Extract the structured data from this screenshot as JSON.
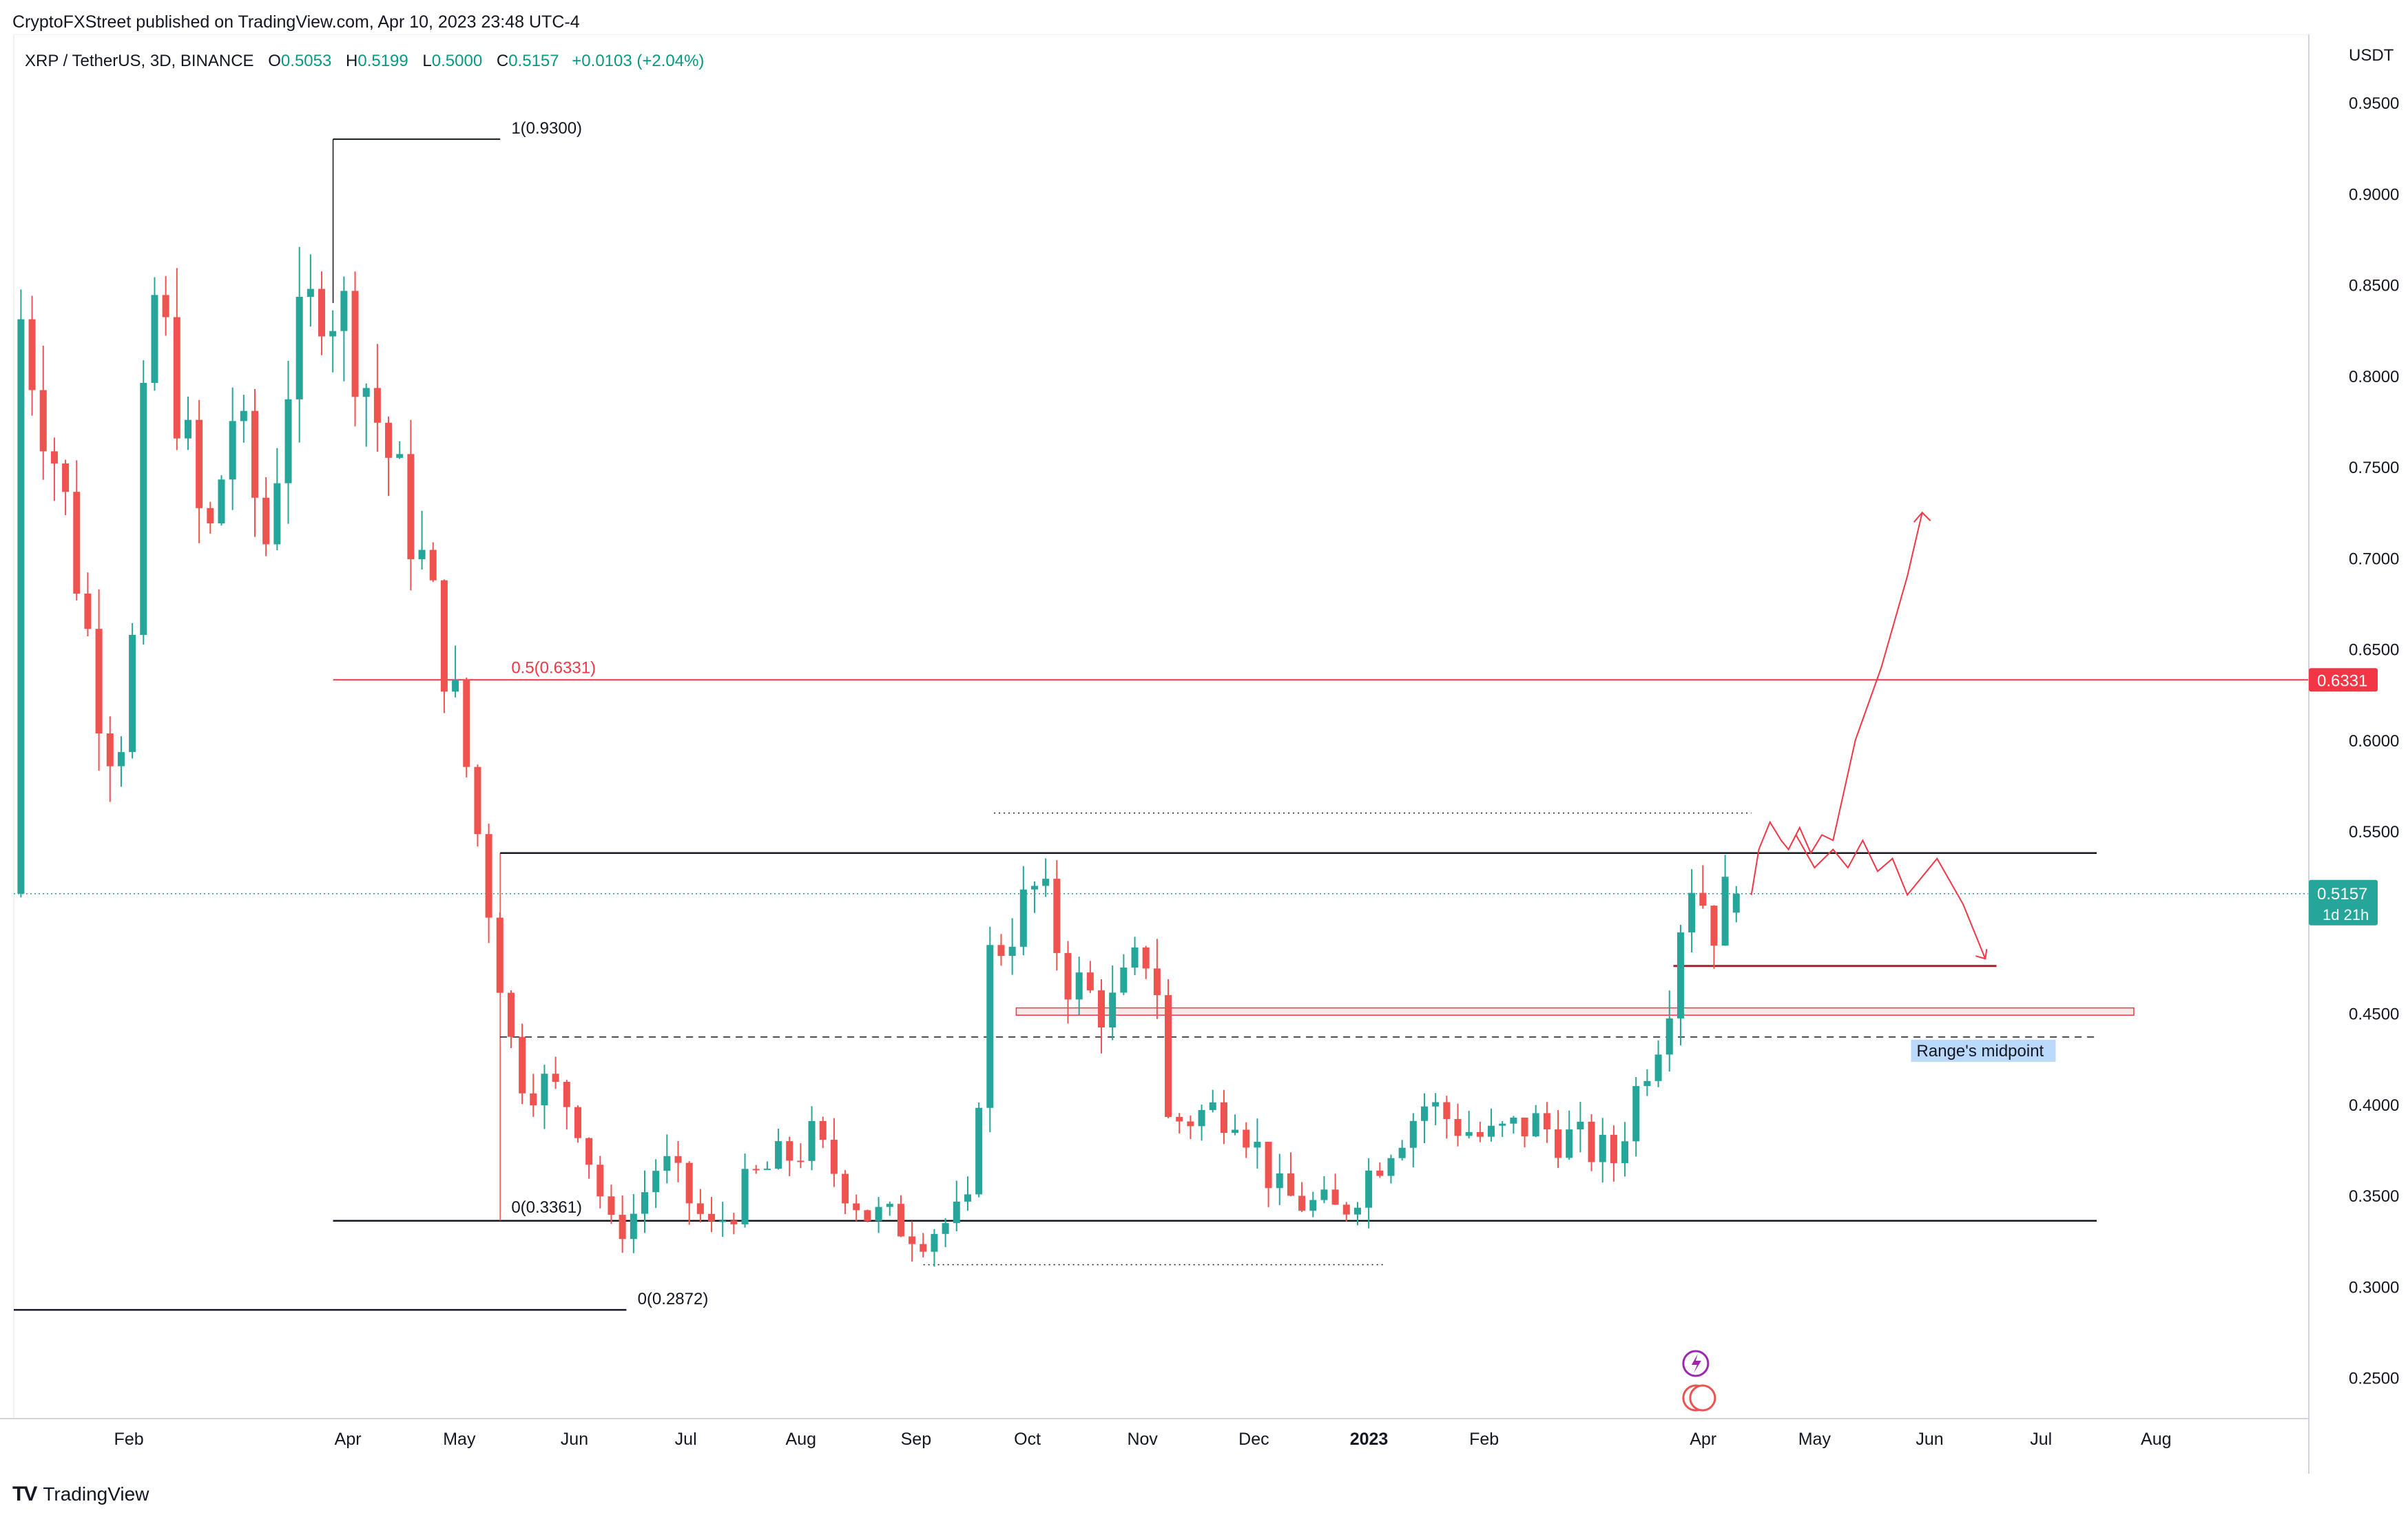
{
  "publisher_line": "CryptoFXStreet published on TradingView.com, Apr 10, 2023 23:48 UTC-4",
  "legend": {
    "symbol": "XRP / TetherUS, 3D, BINANCE",
    "o_label": "O",
    "o_value": "0.5053",
    "h_label": "H",
    "h_value": "0.5199",
    "l_label": "L",
    "l_value": "0.5000",
    "c_label": "C",
    "c_value": "0.5157",
    "change": "+0.0103 (+2.04%)"
  },
  "footer": {
    "brand": "TradingView",
    "logo": "TV"
  },
  "colors": {
    "up": "#26a69a",
    "down": "#ef5350",
    "fib_mid": "#f23645",
    "price_tag": "#26a69a",
    "fib_tag": "#f23645",
    "annotation": "#f23645",
    "midpoint_label_bg": "#bbd9fb",
    "axis_text": "#131722"
  },
  "chart_data": {
    "type": "candlestick",
    "title": "XRP / TetherUS, 3D, BINANCE",
    "currency": "USDT",
    "ylim": [
      0.2275,
      0.9875
    ],
    "y_ticks": [
      "0.9500",
      "0.9000",
      "0.8500",
      "0.8000",
      "0.7500",
      "0.7000",
      "0.6500",
      "0.6000",
      "0.5500",
      "0.4500",
      "0.4000",
      "0.3500",
      "0.3000",
      "0.2500"
    ],
    "x_ticks": [
      {
        "date": "2022-02-01",
        "label": "Feb"
      },
      {
        "date": "2022-04-01",
        "label": "Apr"
      },
      {
        "date": "2022-05-01",
        "label": "May"
      },
      {
        "date": "2022-06-01",
        "label": "Jun"
      },
      {
        "date": "2022-07-01",
        "label": "Jul"
      },
      {
        "date": "2022-08-01",
        "label": "Aug"
      },
      {
        "date": "2022-09-01",
        "label": "Sep"
      },
      {
        "date": "2022-10-01",
        "label": "Oct"
      },
      {
        "date": "2022-11-01",
        "label": "Nov"
      },
      {
        "date": "2022-12-01",
        "label": "Dec"
      },
      {
        "date": "2023-01-01",
        "label": "2023",
        "bold": true
      },
      {
        "date": "2023-02-01",
        "label": "Feb"
      },
      {
        "date": "2023-04-01",
        "label": "Apr"
      },
      {
        "date": "2023-05-01",
        "label": "May"
      },
      {
        "date": "2023-06-01",
        "label": "Jun"
      },
      {
        "date": "2023-07-01",
        "label": "Jul"
      },
      {
        "date": "2023-08-01",
        "label": "Aug"
      }
    ],
    "waypoints": [
      [
        "2022-01-04",
        0.84
      ],
      [
        "2022-01-16",
        0.74
      ],
      [
        "2022-01-28",
        0.6
      ],
      [
        "2022-02-03",
        0.61
      ],
      [
        "2022-02-09",
        0.85
      ],
      [
        "2022-02-15",
        0.8
      ],
      [
        "2022-02-24",
        0.7
      ],
      [
        "2022-03-03",
        0.78
      ],
      [
        "2022-03-12",
        0.71
      ],
      [
        "2022-03-18",
        0.8
      ],
      [
        "2022-03-27",
        0.85
      ],
      [
        "2022-04-03",
        0.83
      ],
      [
        "2022-04-15",
        0.75
      ],
      [
        "2022-04-24",
        0.69
      ],
      [
        "2022-05-03",
        0.61
      ],
      [
        "2022-05-12",
        0.5
      ],
      [
        "2022-05-18",
        0.42
      ],
      [
        "2022-06-03",
        0.4
      ],
      [
        "2022-06-13",
        0.33
      ],
      [
        "2022-06-19",
        0.34
      ],
      [
        "2022-06-26",
        0.37
      ],
      [
        "2022-07-10",
        0.33
      ],
      [
        "2022-07-22",
        0.36
      ],
      [
        "2022-08-06",
        0.38
      ],
      [
        "2022-08-21",
        0.34
      ],
      [
        "2022-09-05",
        0.33
      ],
      [
        "2022-09-17",
        0.34
      ],
      [
        "2022-09-23",
        0.48
      ],
      [
        "2022-10-06",
        0.52
      ],
      [
        "2022-10-14",
        0.47
      ],
      [
        "2022-10-25",
        0.45
      ],
      [
        "2022-11-06",
        0.49
      ],
      [
        "2022-11-10",
        0.39
      ],
      [
        "2022-11-28",
        0.4
      ],
      [
        "2022-12-10",
        0.35
      ],
      [
        "2022-12-26",
        0.34
      ],
      [
        "2023-01-09",
        0.38
      ],
      [
        "2023-01-18",
        0.4
      ],
      [
        "2023-02-04",
        0.38
      ],
      [
        "2023-02-16",
        0.39
      ],
      [
        "2023-03-10",
        0.37
      ],
      [
        "2023-03-18",
        0.42
      ],
      [
        "2023-03-24",
        0.45
      ],
      [
        "2023-03-30",
        0.53
      ],
      [
        "2023-04-06",
        0.5
      ],
      [
        "2023-04-10",
        0.5157
      ]
    ],
    "last_candle": {
      "open": 0.5053,
      "high": 0.5199,
      "low": 0.5,
      "close": 0.5157
    },
    "last_price": 0.5157,
    "last_price_label": "0.5157",
    "countdown": "1d 21h",
    "fib_levels": [
      {
        "label": "1(0.9300)",
        "value": 0.93
      },
      {
        "label": "0.5(0.6331)",
        "value": 0.6331,
        "tag": "0.6331"
      },
      {
        "label": "0(0.3361)",
        "value": 0.3361
      },
      {
        "label": "0(0.2872)",
        "value": 0.2872
      }
    ],
    "range_high": 0.538,
    "range_low": 0.3361,
    "range_midpoint": 0.437,
    "range_midpoint_label": "Range's midpoint",
    "dotted_levels": [
      0.56,
      0.312
    ],
    "support_zone": [
      0.453,
      0.449
    ],
    "support_line": 0.476,
    "annotations": "hand-drawn red projected path: chop below 0.55 then breakout toward 0.72; alternative path pulling back to 0.476"
  }
}
